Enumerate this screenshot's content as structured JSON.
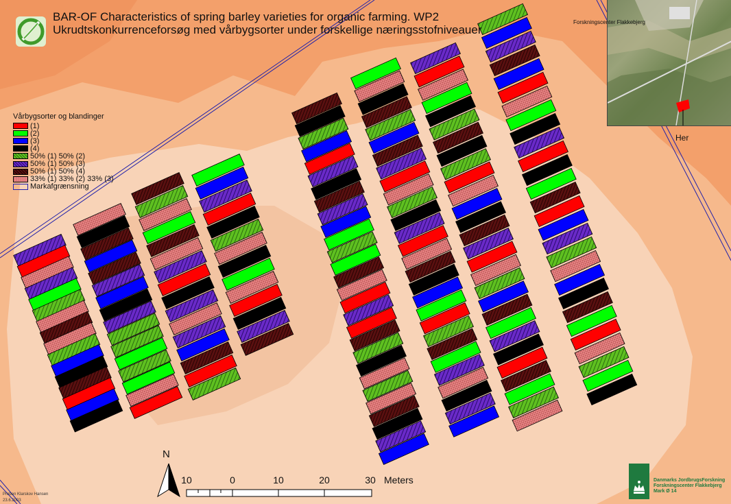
{
  "title": {
    "line1": "BAR-OF Characteristics of spring barley varieties for organic farming. WP2",
    "line2": "Ukrudtskonkurrenceforsøg med vårbygsorter under forskellige næringsstofniveauer"
  },
  "legend": {
    "title": "Vårbygsorter og blandinger",
    "items": [
      {
        "label": "(1)",
        "fill": "solid-red"
      },
      {
        "label": "(2)",
        "fill": "solid-green"
      },
      {
        "label": "(3)",
        "fill": "solid-blue"
      },
      {
        "label": "(4)",
        "fill": "solid-black"
      },
      {
        "label": "50% (1) 50% (2)",
        "fill": "hatch-green"
      },
      {
        "label": "50% (1) 50% (3)",
        "fill": "hatch-blue"
      },
      {
        "label": "50% (1) 50% (4)",
        "fill": "hatch-darkred"
      },
      {
        "label": "33% (1) 33% (2) 33% (3)",
        "fill": "dots-pink"
      },
      {
        "label": "Markafgrænsning",
        "fill": "outline-blue"
      }
    ]
  },
  "colors": {
    "background": "#f3a06b",
    "light_area": "#f8d3b7",
    "mid_area": "#f6b98c",
    "boundary": "#2222aa",
    "red": "#ff0000",
    "green": "#00ff00",
    "blue": "#0000ff",
    "black": "#000000"
  },
  "inset": {
    "label": "Forskningscenter Flakkebjerg",
    "marker": "Her"
  },
  "scale_bar": {
    "ticks": [
      "10",
      "0",
      "10",
      "20",
      "30"
    ],
    "unit": "Meters"
  },
  "north_arrow": {
    "label": "N"
  },
  "author": {
    "name": "Preben Klarskov Hansen",
    "date": "23.6.2003"
  },
  "institution": {
    "line1": "Danmarks JordbrugsForskning",
    "line2": "Forskningscenter Flakkebjerg",
    "line3": "Mark Ø 14"
  },
  "plot_blocks": [
    {
      "plots": [
        "hatch-blue",
        "solid-red",
        "dots-pink",
        "hatch-blue",
        "solid-green",
        "hatch-green",
        "dots-pink",
        "hatch-darkred",
        "dots-pink",
        "hatch-green",
        "solid-blue",
        "solid-black",
        "hatch-darkred",
        "solid-red",
        "solid-blue",
        "solid-black"
      ]
    },
    {
      "plots": [
        "dots-pink",
        "solid-black",
        "hatch-darkred",
        "solid-blue",
        "hatch-darkred",
        "hatch-blue",
        "solid-blue",
        "solid-black",
        "hatch-blue",
        "hatch-green",
        "hatch-green",
        "solid-green",
        "hatch-green",
        "solid-green",
        "dots-pink",
        "solid-red"
      ]
    },
    {
      "plots": [
        "hatch-darkred",
        "hatch-green",
        "dots-pink",
        "solid-green",
        "hatch-darkred",
        "dots-pink",
        "hatch-blue",
        "solid-red",
        "solid-black",
        "hatch-blue",
        "dots-pink",
        "hatch-blue",
        "solid-blue",
        "hatch-darkred",
        "solid-red",
        "hatch-green"
      ]
    },
    {
      "plots": [
        "solid-green",
        "solid-blue",
        "hatch-blue",
        "solid-red",
        "solid-black",
        "hatch-green",
        "dots-pink",
        "solid-black",
        "solid-green",
        "dots-pink",
        "solid-red",
        "solid-black",
        "hatch-blue",
        "hatch-darkred"
      ]
    },
    {
      "plots": [
        "hatch-darkred",
        "solid-black",
        "hatch-green",
        "solid-blue",
        "solid-red",
        "hatch-blue",
        "solid-black",
        "hatch-darkred",
        "hatch-blue",
        "solid-blue",
        "solid-green",
        "hatch-green",
        "solid-green",
        "hatch-darkred",
        "dots-pink",
        "solid-red",
        "hatch-blue",
        "solid-red",
        "hatch-darkred",
        "hatch-green",
        "solid-black",
        "dots-pink",
        "hatch-green",
        "dots-pink",
        "hatch-darkred",
        "solid-black",
        "hatch-blue",
        "solid-blue"
      ]
    },
    {
      "plots": [
        "solid-green",
        "dots-pink",
        "solid-black",
        "hatch-darkred",
        "hatch-green",
        "solid-blue",
        "hatch-darkred",
        "hatch-blue",
        "solid-red",
        "dots-pink",
        "hatch-green",
        "solid-black",
        "hatch-blue",
        "solid-red",
        "dots-pink",
        "hatch-darkred",
        "solid-black",
        "solid-blue",
        "solid-green",
        "solid-red",
        "hatch-green",
        "hatch-darkred",
        "solid-green",
        "hatch-blue",
        "dots-pink",
        "solid-black",
        "hatch-blue",
        "solid-blue"
      ]
    },
    {
      "plots": [
        "hatch-blue",
        "solid-red",
        "dots-pink",
        "solid-green",
        "solid-black",
        "hatch-green",
        "hatch-darkred",
        "solid-black",
        "hatch-green",
        "solid-red",
        "dots-pink",
        "solid-blue",
        "solid-black",
        "hatch-darkred",
        "hatch-blue",
        "solid-red",
        "dots-pink",
        "hatch-green",
        "solid-blue",
        "hatch-darkred",
        "solid-green",
        "hatch-blue",
        "solid-black",
        "solid-red",
        "hatch-darkred",
        "solid-green",
        "hatch-green",
        "dots-pink"
      ]
    },
    {
      "plots": [
        "hatch-green",
        "solid-blue",
        "hatch-blue",
        "hatch-darkred",
        "solid-blue",
        "solid-red",
        "dots-pink",
        "solid-green",
        "solid-black",
        "hatch-blue",
        "solid-red",
        "solid-black",
        "solid-green",
        "hatch-darkred",
        "solid-red",
        "solid-blue",
        "hatch-blue",
        "hatch-green",
        "dots-pink",
        "solid-blue",
        "solid-black",
        "hatch-darkred",
        "solid-green",
        "solid-red",
        "dots-pink",
        "hatch-green",
        "solid-green",
        "solid-black"
      ]
    }
  ]
}
